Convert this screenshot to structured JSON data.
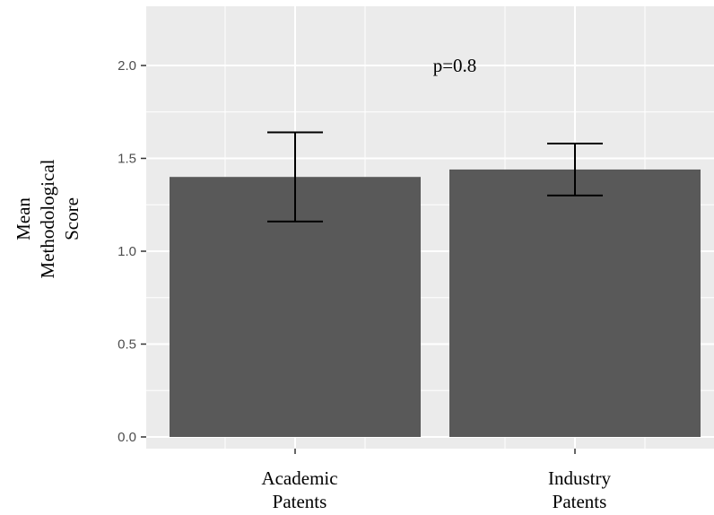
{
  "chart_data": {
    "type": "bar",
    "categories": [
      [
        "Academic",
        "Patents"
      ],
      [
        "Industry",
        "Patents"
      ]
    ],
    "values": [
      1.4,
      1.44
    ],
    "error_bars": [
      {
        "lower": 1.16,
        "upper": 1.64
      },
      {
        "lower": 1.3,
        "upper": 1.58
      }
    ],
    "ylabel_lines": [
      "Mean",
      "Methodological",
      "Score"
    ],
    "y_ticks": [
      "0.0",
      "0.5",
      "1.0",
      "1.5",
      "2.0"
    ],
    "ylim": [
      0,
      2.25
    ],
    "annotation": "p=0.8",
    "grid": true,
    "colors": {
      "panel": "#ebebeb",
      "grid": "#ffffff",
      "bar": "#595959",
      "error_bar": "#000000"
    }
  }
}
